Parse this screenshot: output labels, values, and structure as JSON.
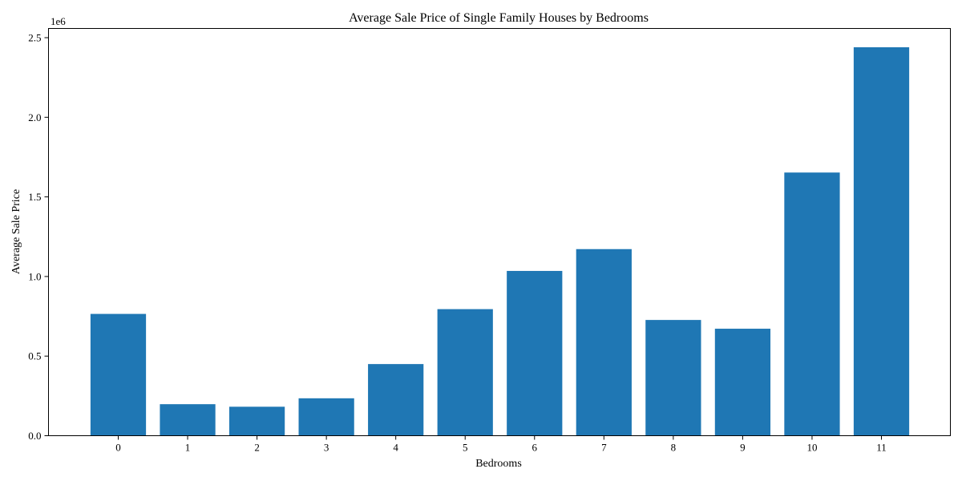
{
  "chart_data": {
    "type": "bar",
    "title": "Average Sale Price of Single Family Houses by Bedrooms",
    "xlabel": "Bedrooms",
    "ylabel": "Average Sale Price",
    "y_offset_label": "1e6",
    "categories": [
      "0",
      "1",
      "2",
      "3",
      "4",
      "5",
      "6",
      "7",
      "8",
      "9",
      "10",
      "11"
    ],
    "values": [
      765000,
      198000,
      182000,
      235000,
      450000,
      795000,
      1035000,
      1172000,
      727000,
      672000,
      1653000,
      2440000
    ],
    "ylim": [
      0,
      2500000
    ],
    "y_ticks": [
      0,
      500000,
      1000000,
      1500000,
      2000000,
      2500000
    ],
    "y_tick_labels": [
      "0.0",
      "0.5",
      "1.0",
      "1.5",
      "2.0",
      "2.5"
    ],
    "grid": false,
    "bar_color": "#1f77b4"
  }
}
